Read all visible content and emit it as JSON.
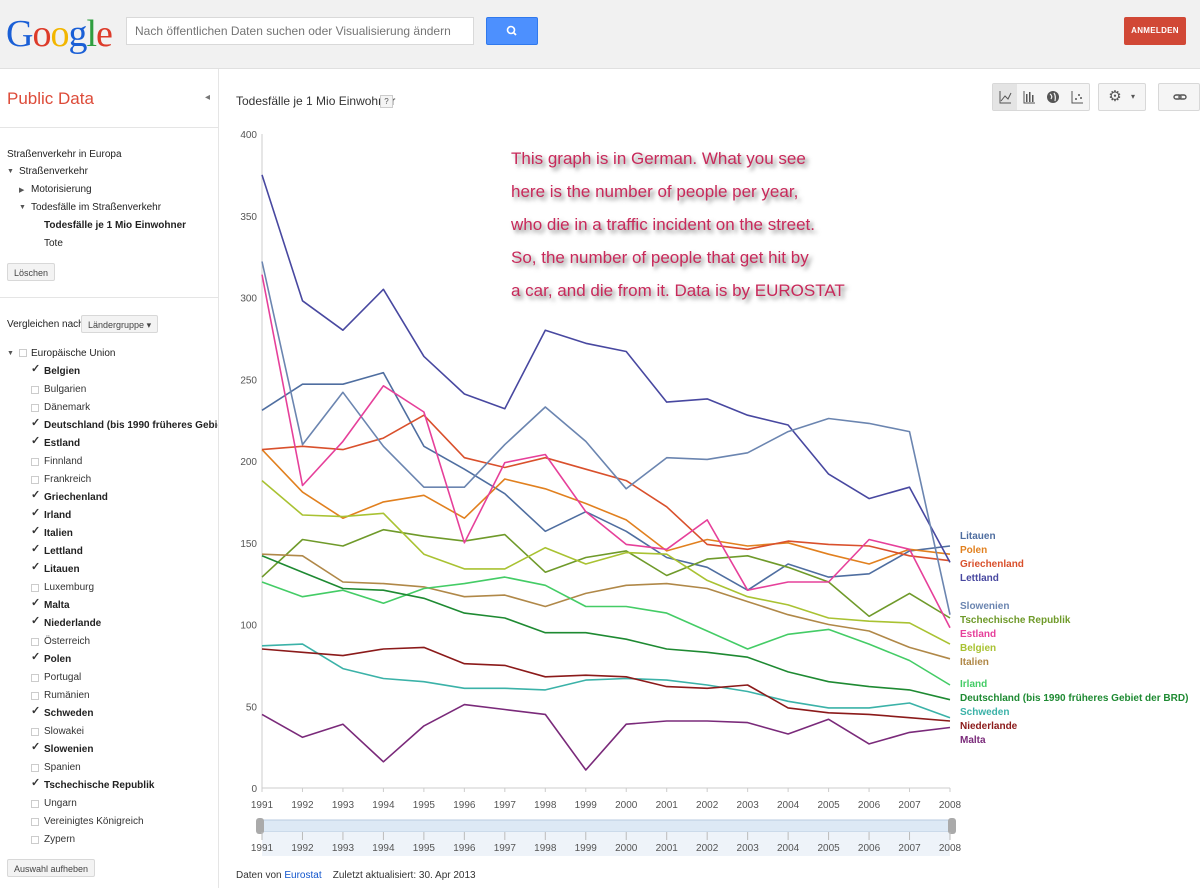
{
  "header": {
    "logo_text": "Google",
    "search_placeholder": "Nach öffentlichen Daten suchen oder Visualisierung ändern",
    "signin_label": "ANMELDEN"
  },
  "sidebar": {
    "title": "Public Data",
    "tree": {
      "root": "Straßenverkehr in Europa",
      "level1": "Straßenverkehr",
      "motor": "Motorisierung",
      "deaths": "Todesfälle im Straßenverkehr",
      "selected": "Todesfälle je 1 Mio Einwohner",
      "tote": "Tote"
    },
    "clear_button": "Löschen",
    "compare_label": "Vergleichen nach",
    "compare_select": "Ländergruppe",
    "group_name": "Europäische Union",
    "countries": [
      {
        "name": "Belgien",
        "checked": true
      },
      {
        "name": "Bulgarien",
        "checked": false
      },
      {
        "name": "Dänemark",
        "checked": false
      },
      {
        "name": "Deutschland (bis 1990 früheres Gebiet der BRD)",
        "checked": true
      },
      {
        "name": "Estland",
        "checked": true
      },
      {
        "name": "Finnland",
        "checked": false
      },
      {
        "name": "Frankreich",
        "checked": false
      },
      {
        "name": "Griechenland",
        "checked": true
      },
      {
        "name": "Irland",
        "checked": true
      },
      {
        "name": "Italien",
        "checked": true
      },
      {
        "name": "Lettland",
        "checked": true
      },
      {
        "name": "Litauen",
        "checked": true
      },
      {
        "name": "Luxemburg",
        "checked": false
      },
      {
        "name": "Malta",
        "checked": true
      },
      {
        "name": "Niederlande",
        "checked": true
      },
      {
        "name": "Österreich",
        "checked": false
      },
      {
        "name": "Polen",
        "checked": true
      },
      {
        "name": "Portugal",
        "checked": false
      },
      {
        "name": "Rumänien",
        "checked": false
      },
      {
        "name": "Schweden",
        "checked": true
      },
      {
        "name": "Slowakei",
        "checked": false
      },
      {
        "name": "Slowenien",
        "checked": true
      },
      {
        "name": "Spanien",
        "checked": false
      },
      {
        "name": "Tschechische Republik",
        "checked": true
      },
      {
        "name": "Ungarn",
        "checked": false
      },
      {
        "name": "Vereinigtes Königreich",
        "checked": false
      },
      {
        "name": "Zypern",
        "checked": false
      }
    ],
    "deselect_button": "Auswahl aufheben"
  },
  "main": {
    "chart_title": "Todesfälle je 1 Mio Einwohner",
    "help_label": "?",
    "footer_prefix": "Daten von",
    "footer_source": "Eurostat",
    "footer_updated": "Zuletzt aktualisiert: 30. Apr 2013"
  },
  "annotation": [
    "This graph is in German. What you see",
    "here is the number of people per year,",
    "who die in a traffic incident on the street.",
    "So, the number of people that get hit by",
    " a car, and die from it. Data is by EUROSTAT"
  ],
  "icons": [
    "search-icon",
    "line-chart-icon",
    "bar-chart-icon",
    "map-icon",
    "scatter-icon",
    "gear-icon",
    "link-icon"
  ],
  "colors": {
    "accent_red": "#dd4b39",
    "search_blue": "#4d90fe",
    "signin_red": "#d14836"
  },
  "chart_data": {
    "type": "line",
    "x": [
      1991,
      1992,
      1993,
      1994,
      1995,
      1996,
      1997,
      1998,
      1999,
      2000,
      2001,
      2002,
      2003,
      2004,
      2005,
      2006,
      2007,
      2008
    ],
    "ylim": [
      0,
      400
    ],
    "yticks": [
      0,
      50,
      100,
      150,
      200,
      250,
      300,
      350,
      400
    ],
    "grid": false,
    "legend_placement": "right (labels at line ends)",
    "series": [
      {
        "name": "Litauen",
        "color": "#4f6ea0",
        "values": [
          231,
          247,
          247,
          254,
          209,
          195,
          180,
          157,
          169,
          157,
          141,
          135,
          121,
          137,
          129,
          131,
          145,
          148
        ]
      },
      {
        "name": "Polen",
        "color": "#e1801f",
        "values": [
          207,
          181,
          165,
          175,
          179,
          165,
          189,
          183,
          174,
          164,
          145,
          152,
          148,
          150,
          143,
          137,
          146,
          143
        ]
      },
      {
        "name": "Griechenland",
        "color": "#d9502c",
        "values": [
          207,
          209,
          207,
          214,
          228,
          202,
          196,
          202,
          195,
          188,
          172,
          149,
          146,
          151,
          149,
          148,
          142,
          139
        ]
      },
      {
        "name": "Lettland",
        "color": "#4848a0",
        "values": [
          375,
          298,
          280,
          305,
          264,
          241,
          232,
          280,
          272,
          267,
          236,
          238,
          228,
          222,
          192,
          177,
          184,
          138
        ]
      },
      {
        "name": "Slowenien",
        "color": "#6b85b0",
        "values": [
          322,
          210,
          242,
          209,
          184,
          184,
          210,
          233,
          212,
          183,
          202,
          201,
          205,
          218,
          226,
          223,
          218,
          106
        ]
      },
      {
        "name": "Tschechische Republik",
        "color": "#6f9a2a",
        "values": [
          129,
          152,
          148,
          158,
          154,
          151,
          155,
          132,
          141,
          145,
          130,
          140,
          142,
          135,
          126,
          105,
          119,
          104
        ]
      },
      {
        "name": "Estland",
        "color": "#e6409a",
        "values": [
          314,
          185,
          212,
          246,
          230,
          150,
          199,
          204,
          169,
          149,
          146,
          164,
          121,
          126,
          126,
          152,
          146,
          98
        ]
      },
      {
        "name": "Belgien",
        "color": "#a9c232",
        "values": [
          188,
          167,
          166,
          168,
          143,
          134,
          134,
          147,
          137,
          144,
          143,
          127,
          117,
          112,
          104,
          102,
          101,
          88
        ]
      },
      {
        "name": "Italien",
        "color": "#b08848",
        "values": [
          143,
          142,
          126,
          125,
          123,
          117,
          118,
          111,
          119,
          124,
          125,
          122,
          114,
          106,
          100,
          96,
          86,
          79
        ]
      },
      {
        "name": "Irland",
        "color": "#44cc66",
        "values": [
          126,
          117,
          121,
          113,
          122,
          125,
          129,
          124,
          111,
          111,
          107,
          96,
          85,
          94,
          97,
          88,
          78,
          63
        ]
      },
      {
        "name": "Deutschland (bis 1990 früheres Gebiet der BRD)",
        "color": "#1e8a32",
        "values": [
          142,
          132,
          122,
          121,
          116,
          107,
          104,
          95,
          95,
          91,
          85,
          83,
          80,
          71,
          65,
          62,
          60,
          54
        ]
      },
      {
        "name": "Schweden",
        "color": "#3bb2a8",
        "values": [
          87,
          88,
          73,
          67,
          65,
          61,
          61,
          60,
          66,
          67,
          66,
          63,
          59,
          53,
          49,
          49,
          52,
          43
        ]
      },
      {
        "name": "Niederlande",
        "color": "#8b1a1a",
        "values": [
          85,
          83,
          81,
          85,
          86,
          76,
          75,
          68,
          69,
          68,
          62,
          61,
          63,
          49,
          46,
          45,
          43,
          41
        ]
      },
      {
        "name": "Malta",
        "color": "#7a2a7a",
        "values": [
          45,
          31,
          39,
          16,
          38,
          51,
          48,
          45,
          11,
          39,
          41,
          41,
          40,
          33,
          42,
          27,
          34,
          37
        ]
      }
    ],
    "legend_order": [
      "Litauen",
      "Polen",
      "Griechenland",
      "Lettland",
      "Slowenien",
      "Tschechische Republik",
      "Estland",
      "Belgien",
      "Italien",
      "Irland",
      "Deutschland (bis 1990 früheres Gebiet der BRD)",
      "Schweden",
      "Niederlande",
      "Malta"
    ]
  }
}
